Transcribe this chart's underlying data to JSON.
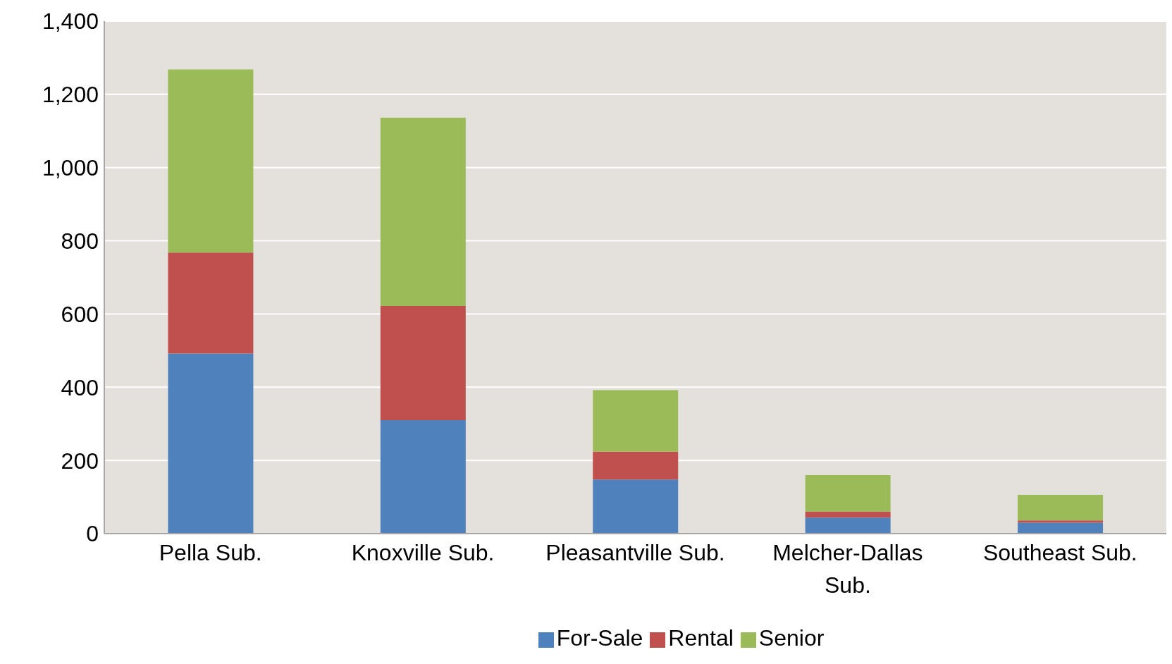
{
  "chart_data": {
    "type": "bar",
    "stacked": true,
    "categories": [
      "Pella Sub.",
      "Knoxville Sub.",
      "Pleasantville Sub.",
      "Melcher-Dallas Sub.",
      "Southeast Sub."
    ],
    "series": [
      {
        "name": "For-Sale",
        "color": "#4f81bd",
        "values": [
          492,
          310,
          148,
          44,
          30
        ]
      },
      {
        "name": "Rental",
        "color": "#c0504d",
        "values": [
          276,
          312,
          76,
          16,
          6
        ]
      },
      {
        "name": "Senior",
        "color": "#9bbb59",
        "values": [
          500,
          514,
          168,
          100,
          70
        ]
      }
    ],
    "ylim": [
      0,
      1400
    ],
    "yticks": [
      {
        "value": 0,
        "label": "0"
      },
      {
        "value": 200,
        "label": "200"
      },
      {
        "value": 400,
        "label": "400"
      },
      {
        "value": 600,
        "label": "600"
      },
      {
        "value": 800,
        "label": "800"
      },
      {
        "value": 1000,
        "label": "1,000"
      },
      {
        "value": 1200,
        "label": "1,200"
      },
      {
        "value": 1400,
        "label": "1,400"
      }
    ],
    "grid": "y",
    "legend": "bottom"
  }
}
